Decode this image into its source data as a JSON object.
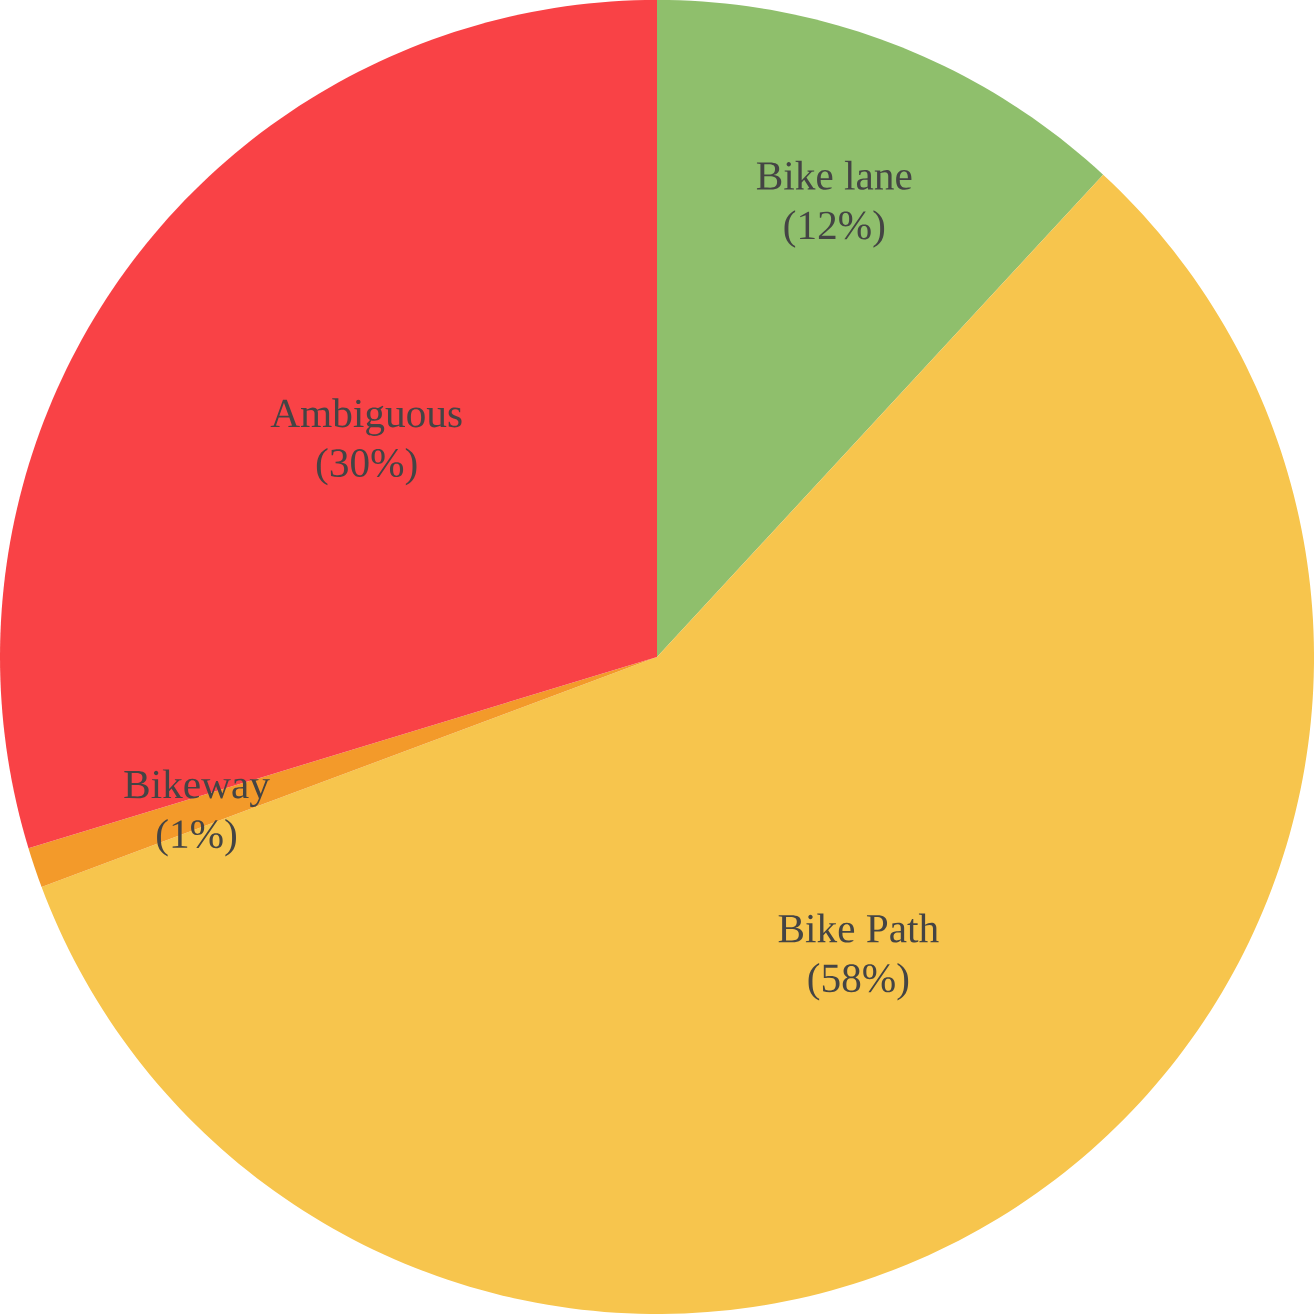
{
  "chart_data": {
    "type": "pie",
    "categories": [
      "Bike lane",
      "Bike Path",
      "Bikeway",
      "Ambiguous"
    ],
    "values": [
      12,
      58,
      1,
      30
    ],
    "value_labels": [
      "(12%)",
      "(58%)",
      "(1%)",
      "(30%)"
    ],
    "colors": [
      "#8fbf6c",
      "#f7c54d",
      "#f39a2a",
      "#f94246"
    ]
  }
}
